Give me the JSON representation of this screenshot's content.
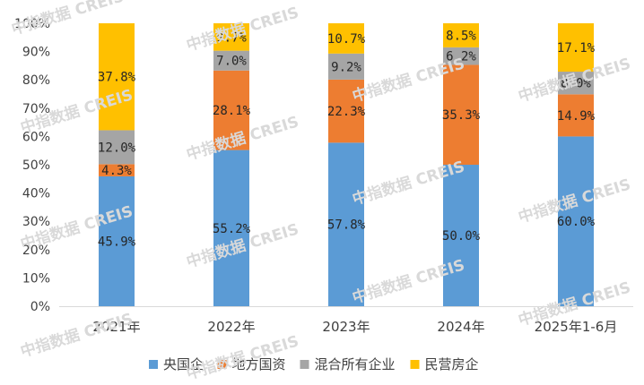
{
  "chart_data": {
    "type": "bar",
    "stacked": true,
    "percent": true,
    "categories": [
      "2021年",
      "2022年",
      "2023年",
      "2024年",
      "2025年1-6月"
    ],
    "series": [
      {
        "name": "央国企",
        "color": "#5B9BD5",
        "values": [
          45.9,
          55.2,
          57.8,
          50.0,
          60.0
        ]
      },
      {
        "name": "地方国资",
        "color": "#ED7D31",
        "values": [
          4.3,
          28.1,
          22.3,
          35.3,
          14.9
        ]
      },
      {
        "name": "混合所有企业",
        "color": "#A5A5A5",
        "values": [
          12.0,
          7.0,
          9.2,
          6.2,
          8.0
        ]
      },
      {
        "name": "民营房企",
        "color": "#FFC000",
        "values": [
          37.8,
          9.7,
          10.7,
          8.5,
          17.1
        ]
      }
    ],
    "yticks": [
      "0%",
      "10%",
      "20%",
      "30%",
      "40%",
      "50%",
      "60%",
      "70%",
      "80%",
      "90%",
      "100%"
    ],
    "ylim": [
      0,
      100
    ],
    "legend_position": "bottom",
    "grid": false
  },
  "watermark": "中指数据 CREIS"
}
